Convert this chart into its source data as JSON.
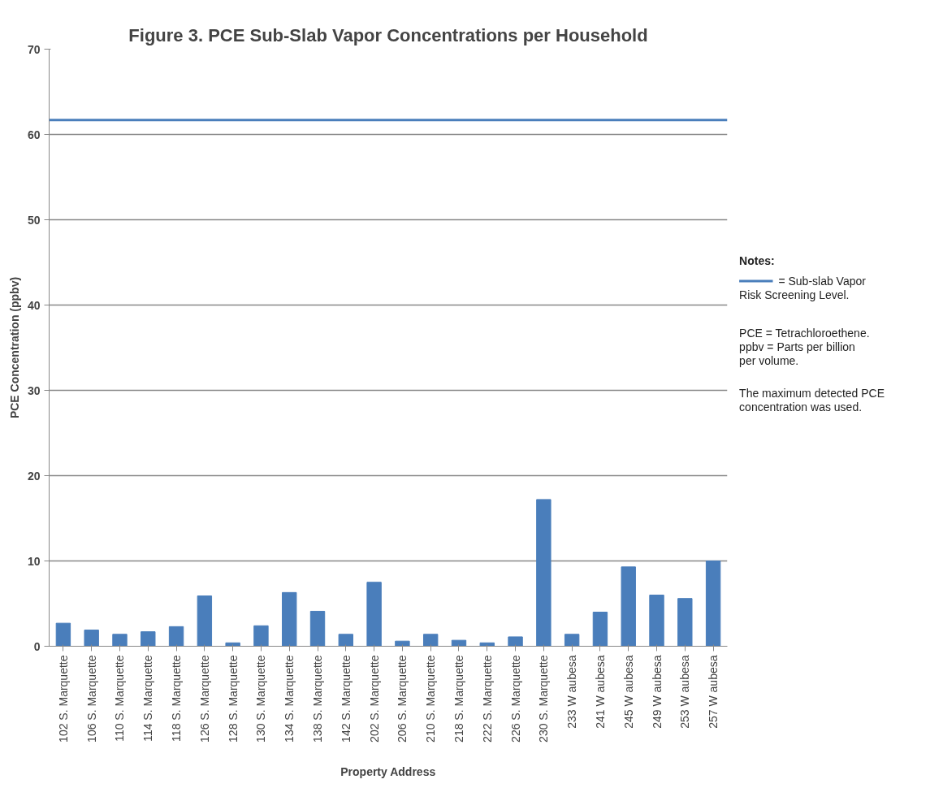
{
  "chart_data": {
    "type": "bar",
    "title": "Figure 3. PCE Sub-Slab Vapor Concentrations per Household",
    "xlabel": "Property Address",
    "ylabel": "PCE Concentration (ppbv)",
    "categories": [
      "102 S. Marquette",
      "106 S. Marquette",
      "110 S. Marquette",
      "114 S. Marquette",
      "118 S. Marquette",
      "126 S. Marquette",
      "128 S. Marquette",
      "130 S. Marquette",
      "134 S. Marquette",
      "138 S. Marquette",
      "142 S. Marquette",
      "202 S. Marquette",
      "206 S. Marquette",
      "210 S. Marquette",
      "218 S. Marquette",
      "222 S. Marquette",
      "226 S. Marquette",
      "230 S. Marquette",
      "233 W aubesa",
      "241 W aubesa",
      "245 W aubesa",
      "249 W aubesa",
      "253 W aubesa",
      "257 W aubesa"
    ],
    "values": [
      2.7,
      1.9,
      1.4,
      1.7,
      2.3,
      5.9,
      0.4,
      2.4,
      6.3,
      4.1,
      1.4,
      7.5,
      0.6,
      1.4,
      0.7,
      0.4,
      1.1,
      17.2,
      1.4,
      4.0,
      9.3,
      6.0,
      5.6,
      10.0
    ],
    "color": "#4a7ebb",
    "ylim": [
      0,
      70
    ],
    "yticks": [
      0,
      10,
      20,
      30,
      40,
      50,
      60,
      70
    ],
    "grid": "y",
    "ref_lines": [
      {
        "axis": "y",
        "value": 61.7,
        "label": "= Sub-slab Vapor Risk Screening Level.",
        "color": "#4a7ebb",
        "line_style": "solid"
      }
    ],
    "annotations": [
      "Notes:",
      "PCE = Tetrachloroethene. ppbv = Parts per billion per volume.",
      "The maximum detected PCE concentration was used."
    ]
  }
}
